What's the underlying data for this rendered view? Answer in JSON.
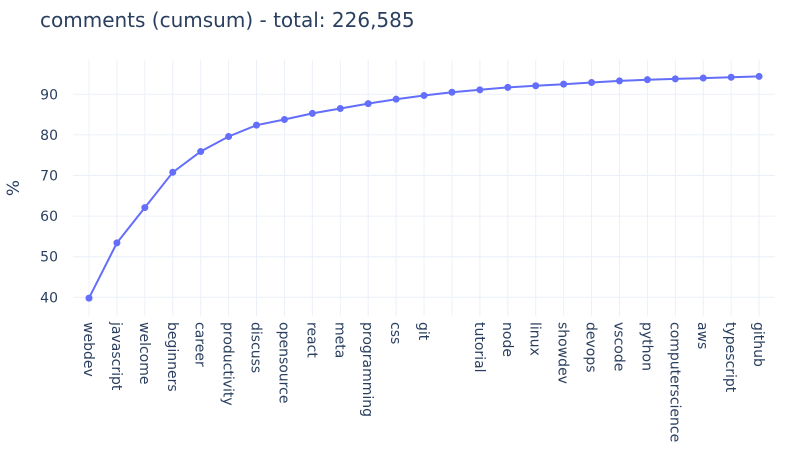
{
  "title": "comments (cumsum) - total: 226,585",
  "chart_data": {
    "type": "line",
    "title": "comments (cumsum) - total: 226,585",
    "xlabel": "",
    "ylabel": "%",
    "ylim": [
      35,
      98
    ],
    "yticks": [
      40,
      50,
      60,
      70,
      80,
      90
    ],
    "grid": true,
    "legend": "none",
    "line_color": "#636efa",
    "categories": [
      "webdev",
      "javascript",
      "welcome",
      "beginners",
      "career",
      "productivity",
      "discuss",
      "opensource",
      "react",
      "meta",
      "programming",
      "css",
      "git",
      "",
      "tutorial",
      "node",
      "linux",
      "showdev",
      "devops",
      "vscode",
      "python",
      "computerscience",
      "aws",
      "typescript",
      "github"
    ],
    "values": [
      39.8,
      53.4,
      62.1,
      70.8,
      75.9,
      79.6,
      82.4,
      83.8,
      85.3,
      86.5,
      87.7,
      88.8,
      89.7,
      90.5,
      91.1,
      91.7,
      92.1,
      92.5,
      92.9,
      93.3,
      93.6,
      93.8,
      94.0,
      94.2,
      94.4
    ]
  }
}
